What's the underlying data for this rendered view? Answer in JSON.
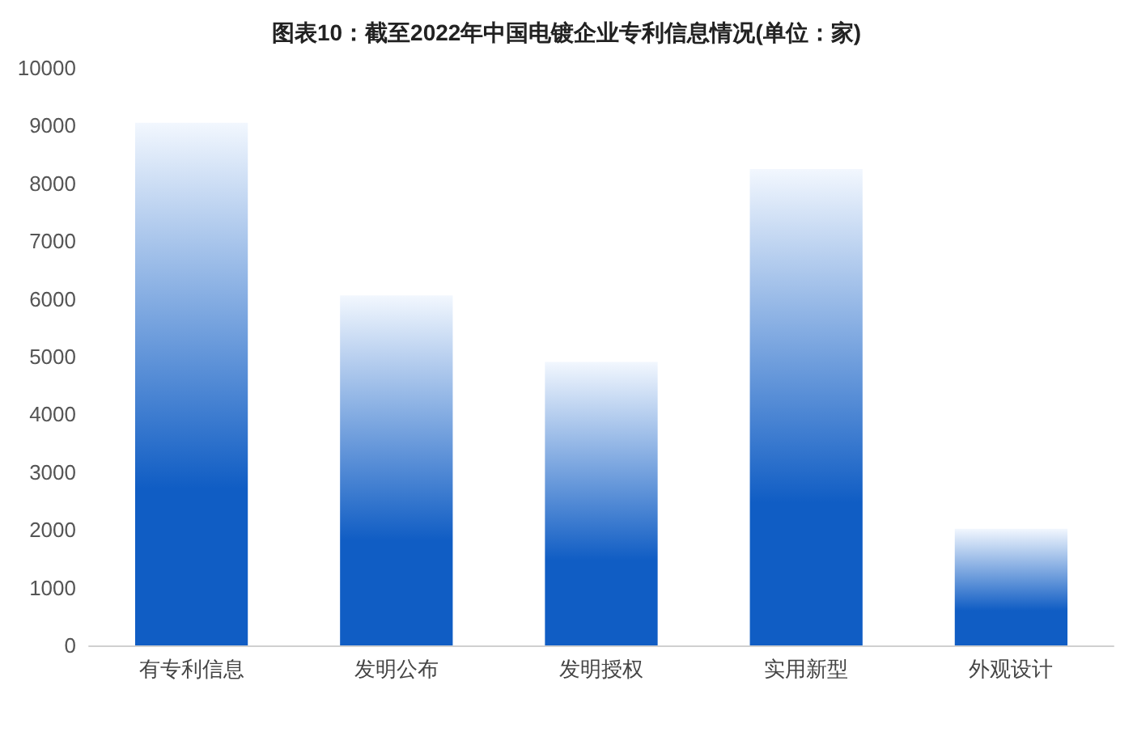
{
  "chart_data": {
    "type": "bar",
    "title": "图表10：截至2022年中国电镀企业专利信息情况(单位：家)",
    "categories": [
      "有专利信息",
      "发明公布",
      "发明授权",
      "实用新型",
      "外观设计"
    ],
    "values": [
      9050,
      6060,
      4910,
      8250,
      2020
    ],
    "color": "#105dc4",
    "ylim": [
      0,
      10000
    ],
    "yticks": [
      0,
      1000,
      2000,
      3000,
      4000,
      5000,
      6000,
      7000,
      8000,
      9000,
      10000
    ],
    "grid": false
  }
}
